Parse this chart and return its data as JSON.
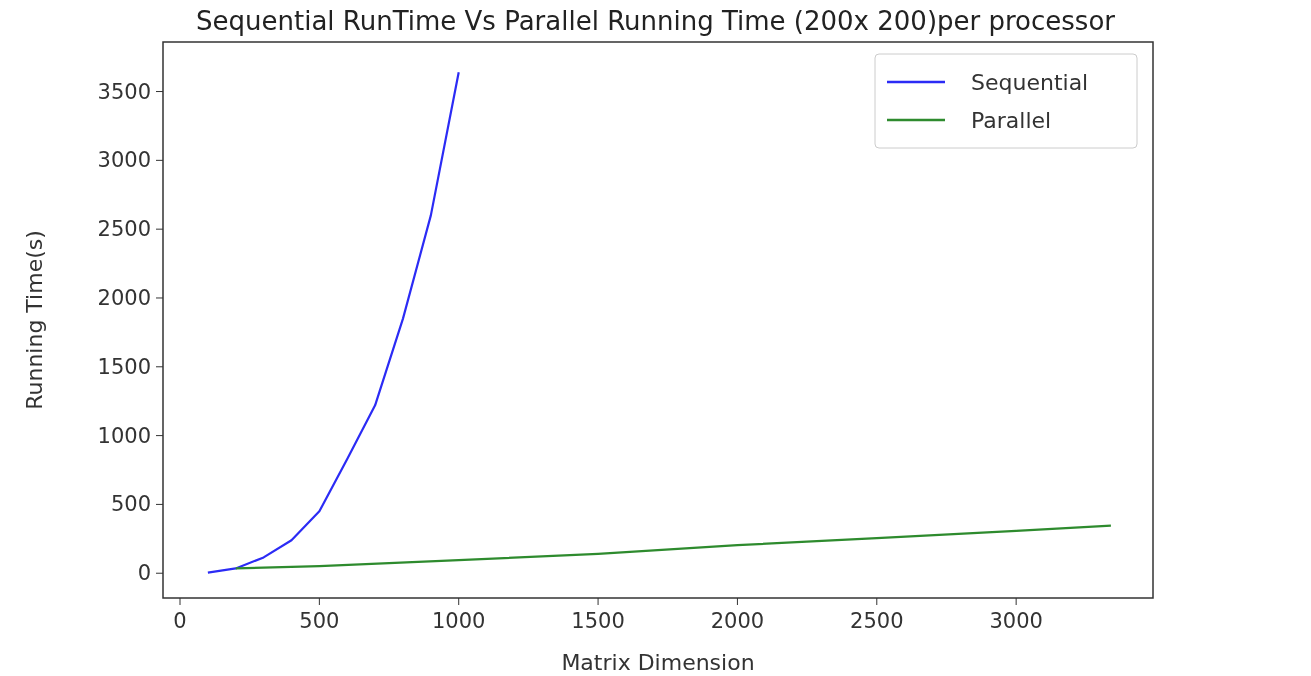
{
  "chart_data": {
    "type": "line",
    "title": "Sequential RunTime Vs Parallel Running Time (200x 200)per processor",
    "xlabel": "Matrix Dimension",
    "ylabel": "Running Time(s)",
    "xlim": [
      -61,
      3491
    ],
    "ylim": [
      -180,
      3860
    ],
    "xticks": [
      0,
      500,
      1000,
      1500,
      2000,
      2500,
      3000
    ],
    "yticks": [
      0,
      500,
      1000,
      1500,
      2000,
      2500,
      3000,
      3500
    ],
    "grid": false,
    "legend": "top right",
    "series": [
      {
        "name": "Sequential",
        "color": "#2b2bf5",
        "x": [
          100,
          200,
          300,
          400,
          500,
          600,
          700,
          800,
          900,
          1000
        ],
        "values": [
          5,
          35,
          115,
          240,
          450,
          830,
          1220,
          1850,
          2600,
          3640
        ]
      },
      {
        "name": "Parallel",
        "color": "#2e8b2e",
        "x": [
          200,
          500,
          1000,
          1500,
          2000,
          2500,
          3000,
          3340
        ],
        "values": [
          35,
          51,
          95,
          140,
          204,
          255,
          308,
          346
        ]
      }
    ]
  }
}
